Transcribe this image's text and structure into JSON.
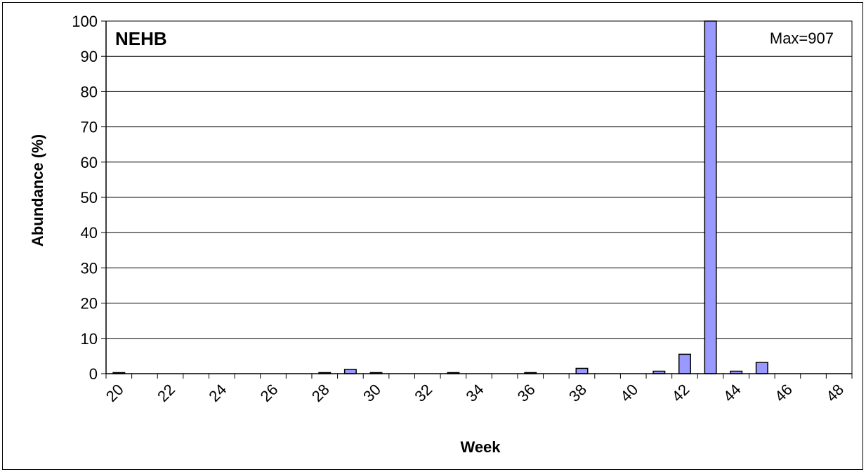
{
  "chart_data": {
    "type": "bar",
    "panel_label": "NEHB",
    "annotation": "Max=907",
    "xlabel": "Week",
    "ylabel": "Abundance (%)",
    "ylim": [
      0,
      100
    ],
    "yticks": [
      0,
      10,
      20,
      30,
      40,
      50,
      60,
      70,
      80,
      90,
      100
    ],
    "xlim": [
      20,
      48
    ],
    "xtick_labels": [
      "20",
      "22",
      "24",
      "26",
      "28",
      "30",
      "32",
      "34",
      "36",
      "38",
      "40",
      "42",
      "44",
      "46",
      "48"
    ],
    "grid": "horizontal",
    "bar_color": "#9999ff",
    "series": [
      {
        "x": [
          20,
          28,
          29,
          30,
          33,
          36,
          38,
          41,
          42,
          43,
          44,
          45
        ],
        "values": [
          0.3,
          0.3,
          1.2,
          0.3,
          0.3,
          0.3,
          1.5,
          0.7,
          5.5,
          100,
          0.7,
          3.2
        ]
      }
    ]
  }
}
